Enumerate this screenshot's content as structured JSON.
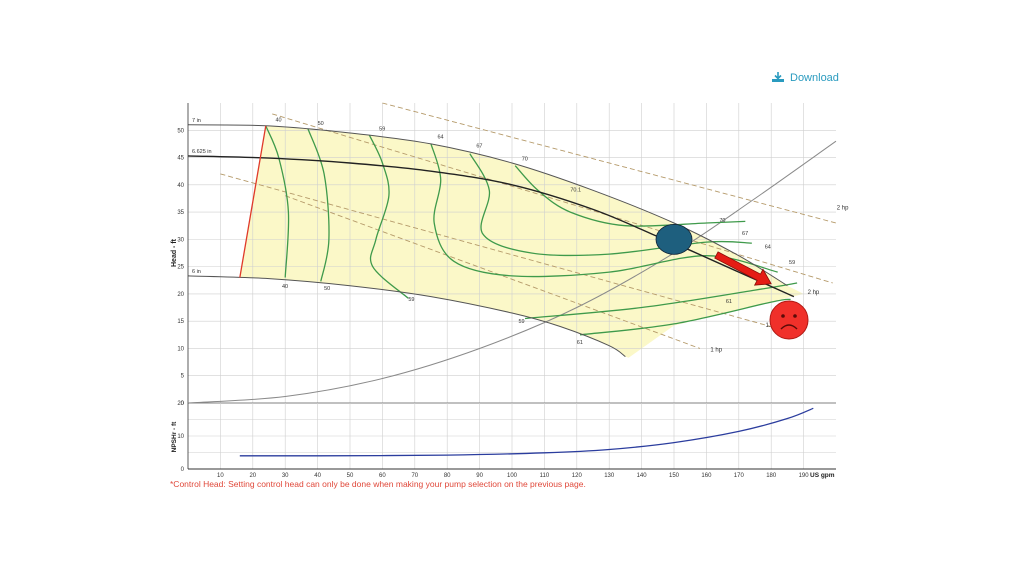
{
  "download": {
    "label": "Download"
  },
  "footnote": "*Control Head: Setting control head can only be done when making your pump selection on the previous page.",
  "colors": {
    "envelope_fill": "#fbf8c8",
    "efficiency": "#3f9a4b",
    "impeller": "#333333",
    "min_curve": "#555555",
    "power": "#b59a6a",
    "system": "#8a8a8a",
    "npsh": "#2b3d9e",
    "min_diameter_line": "#e03a2a",
    "operating_point": "#1e5f7e",
    "arrow": "#e51c14",
    "frown_face": "#f0302a",
    "grid": "#cfcfcf",
    "axis": "#333333",
    "download": "#2a9bbf",
    "footnote": "#e0483a"
  },
  "chart_data": [
    {
      "type": "line",
      "ylabel": "Head - ft",
      "xlim": [
        0,
        200
      ],
      "ylim": [
        0,
        55
      ],
      "x_ticks": [
        10,
        20,
        30,
        40,
        50,
        60,
        70,
        80,
        90,
        100,
        110,
        120,
        130,
        140,
        150,
        160,
        170,
        180,
        190
      ],
      "y_ticks": [
        0,
        5,
        10,
        15,
        20,
        25,
        30,
        35,
        40,
        45,
        50
      ],
      "grid": true,
      "impeller_curves": [
        {
          "name": "7 in",
          "points": [
            [
              0,
              51
            ],
            [
              25,
              50.8
            ],
            [
              50,
              49.5
            ],
            [
              75,
              47.5
            ],
            [
              100,
              44
            ],
            [
              125,
              39
            ],
            [
              150,
              33
            ],
            [
              170,
              27
            ],
            [
              185,
              21.5
            ]
          ]
        },
        {
          "name": "6.625 in",
          "points": [
            [
              0,
              45.3
            ],
            [
              25,
              44.9
            ],
            [
              50,
              44
            ],
            [
              75,
              42.5
            ],
            [
              100,
              40
            ],
            [
              125,
              35.5
            ],
            [
              145,
              30.5
            ],
            [
              155,
              28
            ],
            [
              170,
              24
            ],
            [
              187,
              19.5
            ]
          ]
        },
        {
          "name": "6 in",
          "points": [
            [
              0,
              23.3
            ],
            [
              25,
              22.8
            ],
            [
              50,
              21.5
            ],
            [
              75,
              19.5
            ],
            [
              100,
              16.5
            ],
            [
              115,
              14
            ],
            [
              130,
              10.5
            ],
            [
              135,
              8.5
            ]
          ]
        }
      ],
      "efficiency_curves": [
        {
          "label": "40",
          "points": [
            [
              24,
              50.8
            ],
            [
              28,
              45
            ],
            [
              31,
              35
            ],
            [
              30,
              23
            ]
          ]
        },
        {
          "label": "50",
          "points": [
            [
              37,
              50.3
            ],
            [
              42,
              42
            ],
            [
              43.5,
              30
            ],
            [
              41,
              22.3
            ]
          ]
        },
        {
          "label": "59",
          "points": [
            [
              56,
              49.1
            ],
            [
              60,
              44
            ],
            [
              62,
              38
            ],
            [
              58,
              30
            ],
            [
              57,
              25
            ],
            [
              68,
              19.2
            ]
          ]
        },
        {
          "label": "64",
          "points": [
            [
              75,
              47.5
            ],
            [
              78,
              41
            ],
            [
              76,
              33
            ],
            [
              82,
              26
            ],
            [
              100,
              23.3
            ],
            [
              130,
              24
            ],
            [
              160,
              27
            ],
            [
              182,
              24
            ]
          ]
        },
        {
          "label": "67",
          "points": [
            [
              87,
              45.7
            ],
            [
              93,
              39
            ],
            [
              91,
              31
            ],
            [
              106,
              27.5
            ],
            [
              130,
              27.3
            ],
            [
              160,
              29.5
            ],
            [
              174,
              29.3
            ]
          ]
        },
        {
          "label": "70",
          "points": [
            [
              101,
              43.5
            ],
            [
              108,
              39
            ],
            [
              118,
              35
            ],
            [
              135,
              32.5
            ],
            [
              160,
              33
            ],
            [
              172,
              33.3
            ]
          ]
        },
        {
          "label": "61",
          "points": [
            [
              121,
              12.5
            ],
            [
              150,
              14.5
            ],
            [
              180,
              18.5
            ],
            [
              186,
              19
            ]
          ]
        },
        {
          "label": "59",
          "points": [
            [
              104,
              15.5
            ],
            [
              140,
              17.5
            ],
            [
              175,
              20.7
            ],
            [
              188,
              22
            ]
          ]
        }
      ],
      "efficiency_labels": [
        {
          "text": "40",
          "x": 27,
          "y": 51.6
        },
        {
          "text": "50",
          "x": 40,
          "y": 51
        },
        {
          "text": "59",
          "x": 59,
          "y": 50
        },
        {
          "text": "64",
          "x": 77,
          "y": 48.5
        },
        {
          "text": "67",
          "x": 89,
          "y": 46.8
        },
        {
          "text": "70",
          "x": 103,
          "y": 44.5
        },
        {
          "text": "70.1",
          "x": 118,
          "y": 38.8
        },
        {
          "text": "70",
          "x": 164,
          "y": 33.2
        },
        {
          "text": "67",
          "x": 171,
          "y": 30.8
        },
        {
          "text": "64",
          "x": 178,
          "y": 28.3
        },
        {
          "text": "59",
          "x": 185.5,
          "y": 25.5
        },
        {
          "text": "61",
          "x": 166,
          "y": 18.3
        },
        {
          "text": "59",
          "x": 102,
          "y": 14.7
        },
        {
          "text": "61",
          "x": 120,
          "y": 10.8
        },
        {
          "text": "59",
          "x": 68,
          "y": 18.7
        },
        {
          "text": "50",
          "x": 42,
          "y": 20.7
        },
        {
          "text": "40",
          "x": 29,
          "y": 21.1
        }
      ],
      "power_lines": [
        {
          "label": "2 hp",
          "points": [
            [
              26,
              53
            ],
            [
              199,
              22
            ]
          ],
          "label_at": [
            199,
            36
          ]
        },
        {
          "label": "2 hp",
          "points": [
            [
              60,
              55
            ],
            [
              200,
              33
            ]
          ],
          "label_at": [
            190,
            20.5
          ]
        },
        {
          "label": "1.5 hp",
          "points": [
            [
              10,
              42
            ],
            [
              180,
              14
            ]
          ],
          "label_at": [
            177,
            14.5
          ]
        },
        {
          "label": "1 hp",
          "points": [
            [
              30,
              38
            ],
            [
              158,
              10
            ]
          ],
          "label_at": [
            160,
            10
          ]
        }
      ],
      "system_curve": [
        [
          0,
          0
        ],
        [
          30,
          1.2
        ],
        [
          60,
          4.5
        ],
        [
          90,
          10
        ],
        [
          120,
          17.5
        ],
        [
          150,
          27.5
        ],
        [
          175,
          37.5
        ],
        [
          200,
          48
        ]
      ],
      "min_diameter_line": [
        [
          24,
          50.8
        ],
        [
          16,
          23
        ]
      ],
      "operating_point": [
        150,
        30
      ],
      "arrow": {
        "from": [
          160,
          27.5
        ],
        "to": [
          180,
          21.5
        ]
      }
    },
    {
      "type": "line",
      "ylabel": "NPSHr - ft",
      "xlabel": "US gpm",
      "xlim": [
        0,
        200
      ],
      "ylim": [
        0,
        20
      ],
      "x_ticks": [
        10,
        20,
        30,
        40,
        50,
        60,
        70,
        80,
        90,
        100,
        110,
        120,
        130,
        140,
        150,
        160,
        170,
        180,
        190
      ],
      "x_tick_labels": [
        "10",
        "20",
        "30",
        "40",
        "50",
        "60",
        "70",
        "80",
        "90",
        "100",
        "110",
        "120",
        "130",
        "140",
        "150",
        "160",
        "170",
        "180",
        "190"
      ],
      "y_ticks": [
        0,
        10,
        20
      ],
      "grid": true,
      "series": [
        {
          "points": [
            [
              16,
              4
            ],
            [
              40,
              4
            ],
            [
              80,
              4.2
            ],
            [
              110,
              4.9
            ],
            [
              130,
              5.9
            ],
            [
              150,
              8
            ],
            [
              170,
              11.4
            ],
            [
              185,
              15.3
            ],
            [
              193,
              18.4
            ]
          ]
        }
      ]
    }
  ]
}
